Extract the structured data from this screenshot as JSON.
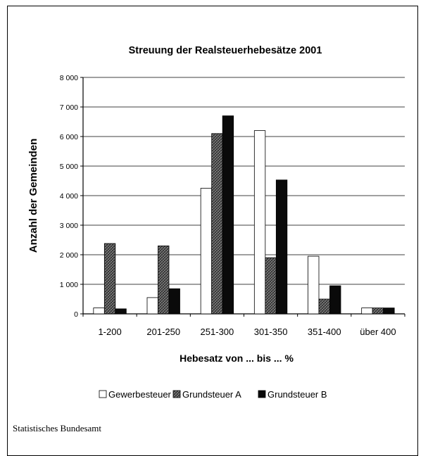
{
  "chart_data": {
    "type": "bar",
    "title": "Streuung der Realsteuerhebesätze 2001",
    "xlabel": "Hebesatz von ... bis ... %",
    "ylabel": "Anzahl der Gemeinden",
    "categories": [
      "1-200",
      "201-250",
      "251-300",
      "301-350",
      "351-400",
      "über 400"
    ],
    "ylim": [
      0,
      8000
    ],
    "yticks": [
      0,
      1000,
      2000,
      3000,
      4000,
      5000,
      6000,
      7000,
      8000
    ],
    "ytick_labels": [
      "0",
      "1 000",
      "2 000",
      "3 000",
      "4 000",
      "5 000",
      "6 000",
      "7 000",
      "8 000"
    ],
    "grid": true,
    "legend_position": "bottom",
    "series": [
      {
        "name": "Gewerbesteuer",
        "values": [
          200,
          550,
          4250,
          6200,
          1950,
          200
        ],
        "color": "#ffffff",
        "style": "white"
      },
      {
        "name": "Grundsteuer A",
        "values": [
          2380,
          2300,
          6100,
          1900,
          500,
          200
        ],
        "color": "#666666",
        "style": "hatched"
      },
      {
        "name": "Grundsteuer B",
        "values": [
          170,
          850,
          6700,
          4530,
          950,
          200
        ],
        "color": "#000000",
        "style": "black"
      }
    ]
  },
  "footer": {
    "source": "Statistisches Bundesamt"
  }
}
